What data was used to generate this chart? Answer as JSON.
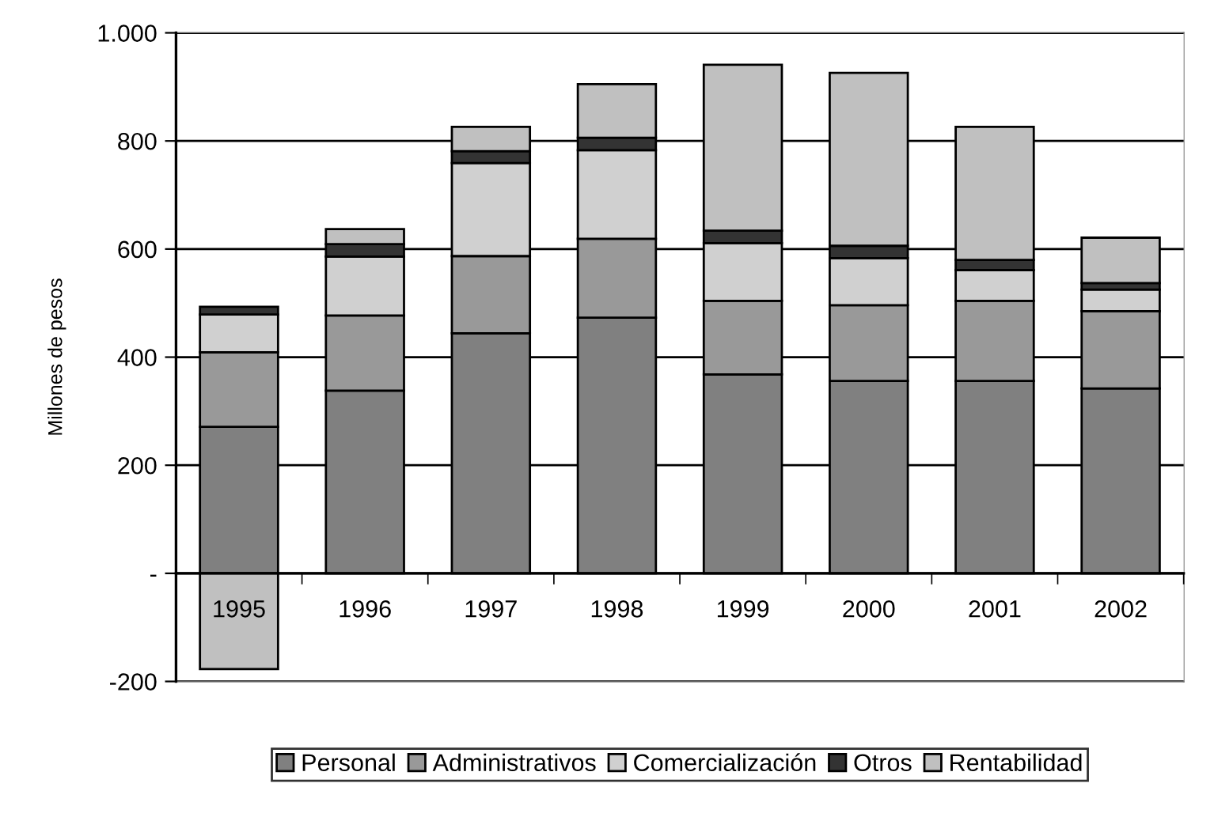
{
  "chart_data": {
    "type": "bar",
    "stacked": true,
    "ylabel": "Millones de pesos",
    "categories": [
      "1995",
      "1996",
      "1997",
      "1998",
      "1999",
      "2000",
      "2001",
      "2002"
    ],
    "series": [
      {
        "name": "Personal",
        "color": "#808080",
        "values": [
          271,
          338,
          444,
          473,
          368,
          356,
          356,
          342
        ]
      },
      {
        "name": "Administrativos",
        "color": "#999999",
        "values": [
          138,
          139,
          143,
          146,
          136,
          140,
          148,
          143
        ]
      },
      {
        "name": "Comercialización",
        "color": "#d0d0d0",
        "values": [
          70,
          109,
          172,
          164,
          107,
          87,
          57,
          40
        ]
      },
      {
        "name": "Otros",
        "color": "#333333",
        "values": [
          14,
          23,
          22,
          23,
          23,
          23,
          19,
          12
        ]
      },
      {
        "name": "Rentabilidad",
        "color": "#c0c0c0",
        "values": [
          -177,
          28,
          45,
          99,
          307,
          320,
          246,
          84
        ]
      }
    ],
    "ylim": [
      -200,
      1000
    ],
    "yticks": [
      -200,
      {
        "value": 0,
        "label": "-"
      },
      200,
      400,
      600,
      800,
      {
        "value": 1000,
        "label": "1.000"
      }
    ],
    "grid": "y",
    "legend": "bottom"
  }
}
